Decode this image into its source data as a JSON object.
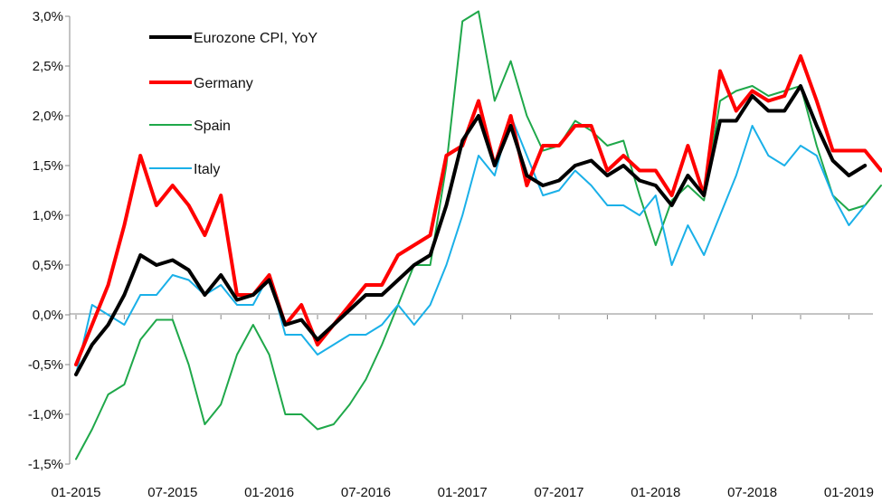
{
  "chart_data": {
    "type": "line",
    "title": "",
    "xlabel": "",
    "ylabel": "",
    "ylim": [
      -1.5,
      3.0
    ],
    "yticks": [
      -1.5,
      -1.0,
      -0.5,
      0.0,
      0.5,
      1.0,
      1.5,
      2.0,
      2.5,
      3.0
    ],
    "ytick_labels": [
      "-1,5%",
      "-1,0%",
      "-0,5%",
      "0,0%",
      "0,5%",
      "1,0%",
      "1,5%",
      "2,0%",
      "2,5%",
      "3,0%"
    ],
    "x": [
      "01-2015",
      "02-2015",
      "03-2015",
      "04-2015",
      "05-2015",
      "06-2015",
      "07-2015",
      "08-2015",
      "09-2015",
      "10-2015",
      "11-2015",
      "12-2015",
      "01-2016",
      "02-2016",
      "03-2016",
      "04-2016",
      "05-2016",
      "06-2016",
      "07-2016",
      "08-2016",
      "09-2016",
      "10-2016",
      "11-2016",
      "12-2016",
      "01-2017",
      "02-2017",
      "03-2017",
      "04-2017",
      "05-2017",
      "06-2017",
      "07-2017",
      "08-2017",
      "09-2017",
      "10-2017",
      "11-2017",
      "12-2017",
      "01-2018",
      "02-2018",
      "03-2018",
      "04-2018",
      "05-2018",
      "06-2018",
      "07-2018",
      "08-2018",
      "09-2018",
      "10-2018",
      "11-2018",
      "12-2018",
      "01-2019",
      "02-2019",
      "03-2019"
    ],
    "xtick_labels": [
      "01-2015",
      "07-2015",
      "01-2016",
      "07-2016",
      "01-2017",
      "07-2017",
      "01-2018",
      "07-2018",
      "01-2019"
    ],
    "grid": false,
    "legend_position": "top-left",
    "series": [
      {
        "name": "Eurozone CPI, YoY",
        "color": "#000000",
        "width": 4,
        "values": [
          -0.6,
          -0.3,
          -0.1,
          0.2,
          0.6,
          0.5,
          0.55,
          0.45,
          0.2,
          0.4,
          0.15,
          0.2,
          0.35,
          -0.1,
          -0.05,
          -0.25,
          -0.1,
          0.05,
          0.2,
          0.2,
          0.35,
          0.5,
          0.6,
          1.1,
          1.75,
          2.0,
          1.5,
          1.9,
          1.4,
          1.3,
          1.35,
          1.5,
          1.55,
          1.4,
          1.5,
          1.35,
          1.3,
          1.1,
          1.4,
          1.2,
          1.95,
          1.95,
          2.2,
          2.05,
          2.05,
          2.3,
          1.9,
          1.55,
          1.4,
          1.5,
          null
        ]
      },
      {
        "name": "Germany",
        "color": "#ff0000",
        "width": 4,
        "values": [
          -0.5,
          -0.1,
          0.3,
          0.9,
          1.6,
          1.1,
          1.3,
          1.1,
          0.8,
          1.2,
          0.2,
          0.2,
          0.4,
          -0.1,
          0.1,
          -0.3,
          -0.1,
          0.1,
          0.3,
          0.3,
          0.6,
          0.7,
          0.8,
          1.6,
          1.7,
          2.15,
          1.5,
          2.0,
          1.3,
          1.7,
          1.7,
          1.9,
          1.9,
          1.45,
          1.6,
          1.45,
          1.45,
          1.2,
          1.7,
          1.2,
          2.45,
          2.05,
          2.25,
          2.15,
          2.2,
          2.6,
          2.15,
          1.65,
          1.65,
          1.65,
          1.45
        ]
      },
      {
        "name": "Spain",
        "color": "#1fa84a",
        "width": 2,
        "values": [
          -1.45,
          -1.15,
          -0.8,
          -0.7,
          -0.25,
          -0.05,
          -0.05,
          -0.5,
          -1.1,
          -0.9,
          -0.4,
          -0.1,
          -0.4,
          -1.0,
          -1.0,
          -1.15,
          -1.1,
          -0.9,
          -0.65,
          -0.3,
          0.1,
          0.5,
          0.5,
          1.5,
          2.95,
          3.05,
          2.15,
          2.55,
          2.0,
          1.65,
          1.7,
          1.95,
          1.85,
          1.7,
          1.75,
          1.2,
          0.7,
          1.15,
          1.3,
          1.15,
          2.15,
          2.25,
          2.3,
          2.2,
          2.25,
          2.3,
          1.7,
          1.2,
          1.05,
          1.1,
          1.3
        ]
      },
      {
        "name": "Italy",
        "color": "#1ab0e8",
        "width": 2,
        "values": [
          -0.6,
          0.1,
          0.0,
          -0.1,
          0.2,
          0.2,
          0.4,
          0.35,
          0.2,
          0.3,
          0.1,
          0.1,
          0.4,
          -0.2,
          -0.2,
          -0.4,
          -0.3,
          -0.2,
          -0.2,
          -0.1,
          0.1,
          -0.1,
          0.1,
          0.5,
          1.0,
          1.6,
          1.4,
          2.0,
          1.6,
          1.2,
          1.25,
          1.45,
          1.3,
          1.1,
          1.1,
          1.0,
          1.2,
          0.5,
          0.9,
          0.6,
          1.0,
          1.4,
          1.9,
          1.6,
          1.5,
          1.7,
          1.6,
          1.2,
          0.9,
          1.1,
          null
        ]
      }
    ]
  }
}
